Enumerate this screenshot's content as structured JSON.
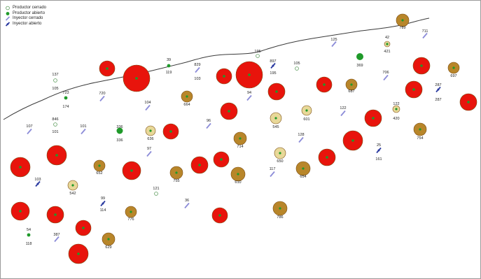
{
  "legend": {
    "items": [
      {
        "label": "Productor cerrado",
        "symbol": "producer-closed-icon"
      },
      {
        "label": "Productor abierto",
        "symbol": "producer-open-icon"
      },
      {
        "label": "Inyector cerrado",
        "symbol": "injector-closed-icon"
      },
      {
        "label": "Inyector abierto",
        "symbol": "injector-open-icon"
      }
    ]
  },
  "colors": {
    "high_bubble": "#e8140c",
    "mid_bubble": "#b8862a",
    "low_bubble": "#e8d898",
    "open_producer": "#1f9a2a",
    "closed_producer_ring": "#5a9a5a",
    "injector_closed": "#8c8cd8",
    "injector_open": "#2a3aa0",
    "boundary_line": "#3a3a3a"
  },
  "wells": [
    {
      "label": "789",
      "kind": "bubble",
      "tier": "mid",
      "size": "small"
    },
    {
      "label": "711",
      "kind": "injector",
      "state": "closed"
    },
    {
      "label": "42",
      "kind": "bubble",
      "tier": "low",
      "size": "tiny"
    },
    {
      "label": "421",
      "kind": "text"
    },
    {
      "label": "125",
      "kind": "injector",
      "state": "closed"
    },
    {
      "label": "369",
      "kind": "producer",
      "state": "open-large"
    },
    {
      "label": "897",
      "kind": "injector",
      "state": "open"
    },
    {
      "label": "195",
      "kind": "text"
    },
    {
      "label": "105",
      "kind": "producer",
      "state": "closed"
    },
    {
      "label": "195",
      "kind": "producer",
      "state": "closed"
    },
    {
      "label": "706",
      "kind": "injector",
      "state": "closed"
    },
    {
      "label": "137",
      "kind": "producer",
      "state": "closed"
    },
    {
      "label": "105",
      "kind": "text"
    },
    {
      "label": "39",
      "kind": "producer",
      "state": "open"
    },
    {
      "label": "119",
      "kind": "text"
    },
    {
      "label": "829",
      "kind": "injector",
      "state": "closed"
    },
    {
      "label": "103",
      "kind": "text"
    },
    {
      "label": "723",
      "kind": "producer",
      "state": "open"
    },
    {
      "label": "174",
      "kind": "text"
    },
    {
      "label": "720",
      "kind": "injector",
      "state": "closed"
    },
    {
      "label": "664",
      "kind": "bubble",
      "tier": "mid",
      "size": "small"
    },
    {
      "label": "94",
      "kind": "injector",
      "state": "closed"
    },
    {
      "label": "831",
      "kind": "bubble",
      "tier": "high",
      "size": "small"
    },
    {
      "label": "687",
      "kind": "bubble",
      "tier": "mid",
      "size": "small"
    },
    {
      "label": "697",
      "kind": "bubble",
      "tier": "mid",
      "size": "small"
    },
    {
      "label": "287",
      "kind": "injector",
      "state": "open-large"
    },
    {
      "label": "104",
      "kind": "injector",
      "state": "closed"
    },
    {
      "label": "601",
      "kind": "bubble",
      "tier": "low",
      "size": "small"
    },
    {
      "label": "122",
      "kind": "injector",
      "state": "closed"
    },
    {
      "label": "34",
      "kind": "bubble",
      "tier": "low",
      "size": "tiny"
    },
    {
      "label": "420",
      "kind": "text"
    },
    {
      "label": "846",
      "kind": "producer",
      "state": "closed"
    },
    {
      "label": "101",
      "kind": "text"
    },
    {
      "label": "107",
      "kind": "injector",
      "state": "closed"
    },
    {
      "label": "101",
      "kind": "injector",
      "state": "closed"
    },
    {
      "label": "336",
      "kind": "producer",
      "state": "open-large"
    },
    {
      "label": "636",
      "kind": "bubble",
      "tier": "low",
      "size": "small"
    },
    {
      "label": "96",
      "kind": "injector",
      "state": "closed"
    },
    {
      "label": "545",
      "kind": "bubble",
      "tier": "low",
      "size": "small"
    },
    {
      "label": "128",
      "kind": "injector",
      "state": "closed"
    },
    {
      "label": "754",
      "kind": "bubble",
      "tier": "mid",
      "size": "small"
    },
    {
      "label": "714",
      "kind": "bubble",
      "tier": "mid",
      "size": "small"
    },
    {
      "label": "97",
      "kind": "injector",
      "state": "closed"
    },
    {
      "label": "650",
      "kind": "bubble",
      "tier": "low",
      "size": "small"
    },
    {
      "label": "25",
      "kind": "injector",
      "state": "open"
    },
    {
      "label": "161",
      "kind": "text"
    },
    {
      "label": "652",
      "kind": "bubble",
      "tier": "mid",
      "size": "small"
    },
    {
      "label": "755",
      "kind": "bubble",
      "tier": "mid",
      "size": "small"
    },
    {
      "label": "610",
      "kind": "bubble",
      "tier": "mid",
      "size": "small"
    },
    {
      "label": "654",
      "kind": "bubble",
      "tier": "mid",
      "size": "small"
    },
    {
      "label": "117",
      "kind": "injector",
      "state": "closed"
    },
    {
      "label": "103",
      "kind": "injector",
      "state": "open"
    },
    {
      "label": "542",
      "kind": "bubble",
      "tier": "low",
      "size": "small"
    },
    {
      "label": "121",
      "kind": "producer",
      "state": "closed"
    },
    {
      "label": "99",
      "kind": "injector",
      "state": "open"
    },
    {
      "label": "114",
      "kind": "text"
    },
    {
      "label": "36",
      "kind": "injector",
      "state": "closed"
    },
    {
      "label": "776",
      "kind": "bubble",
      "tier": "mid",
      "size": "small"
    },
    {
      "label": "786",
      "kind": "bubble",
      "tier": "mid",
      "size": "small"
    },
    {
      "label": "54",
      "kind": "producer",
      "state": "open"
    },
    {
      "label": "118",
      "kind": "text"
    },
    {
      "label": "387",
      "kind": "injector",
      "state": "closed"
    },
    {
      "label": "629",
      "kind": "bubble",
      "tier": "mid",
      "size": "small"
    }
  ]
}
